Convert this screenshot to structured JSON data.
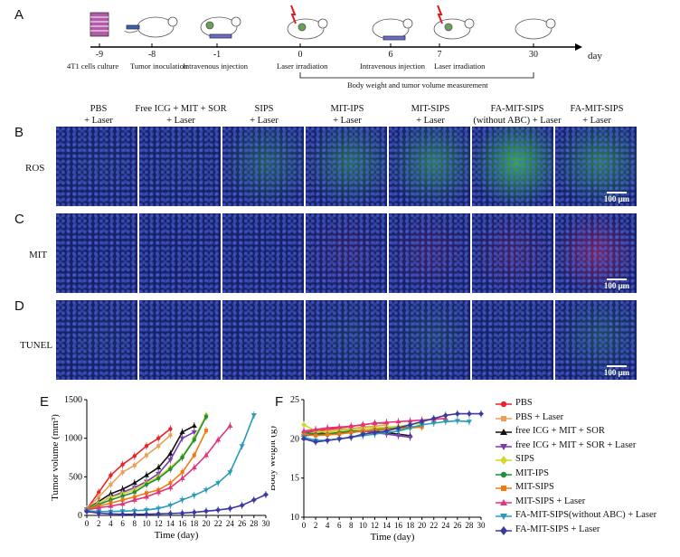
{
  "panels": {
    "A": "A",
    "B": "B",
    "C": "C",
    "D": "D",
    "E": "E",
    "F": "F"
  },
  "timeline": {
    "unit": "day",
    "points": [
      {
        "day": "-9",
        "desc": "4T1 cells culture"
      },
      {
        "day": "-8",
        "desc": "Tumor inoculation"
      },
      {
        "day": "-1",
        "desc": "Intravenous injection"
      },
      {
        "day": "0",
        "desc": "Laser irradiation"
      },
      {
        "day": "6",
        "desc": "Intravenous injection"
      },
      {
        "day": "7",
        "desc": "Laser irradiation"
      },
      {
        "day": "30",
        "desc": ""
      }
    ],
    "bracket_label": "Body weight and tumor volume measurement"
  },
  "groups": [
    "PBS\n+ Laser",
    "Free ICG + MIT + SOR\n+ Laser",
    "SIPS\n+ Laser",
    "MIT-IPS\n+ Laser",
    "MIT-SIPS\n+ Laser",
    "FA-MIT-SIPS\n(without ABC) + Laser",
    "FA-MIT-SIPS\n+ Laser"
  ],
  "rows": [
    "ROS",
    "MIT",
    "TUNEL"
  ],
  "scale_bar": "100 μm",
  "colors": {
    "PBS": "#e8242a",
    "PBS + Laser": "#e8a15a",
    "free ICG + MIT + SOR": "#111111",
    "free ICG + MIT + SOR + Laser": "#7a3ab0",
    "SIPS": "#d6d62a",
    "MIT-IPS": "#1f8f3a",
    "MIT-SIPS": "#f07a10",
    "MIT-SIPS + Laser": "#e0357a",
    "FA-MIT-SIPS(without ABC) + Laser": "#2a9ab8",
    "FA-MIT-SIPS + Laser": "#3a3aa0"
  },
  "chart_data": [
    {
      "type": "line",
      "panel": "E",
      "xlabel": "Time (day)",
      "ylabel": "Tumor volume (mm³)",
      "xlim": [
        0,
        30
      ],
      "ylim": [
        0,
        1500
      ],
      "xticks": [
        0,
        2,
        4,
        6,
        8,
        10,
        12,
        14,
        16,
        18,
        20,
        22,
        24,
        26,
        28,
        30
      ],
      "yticks": [
        0,
        500,
        1000,
        1500
      ],
      "series": [
        {
          "name": "PBS",
          "x": [
            0,
            2,
            4,
            6,
            8,
            10,
            12,
            14
          ],
          "y": [
            80,
            300,
            520,
            660,
            770,
            900,
            1000,
            1120
          ]
        },
        {
          "name": "PBS + Laser",
          "x": [
            0,
            2,
            4,
            6,
            8,
            10,
            12,
            14
          ],
          "y": [
            80,
            240,
            400,
            560,
            650,
            780,
            900,
            1040
          ]
        },
        {
          "name": "free ICG + MIT + SOR",
          "x": [
            0,
            2,
            4,
            6,
            8,
            10,
            12,
            14,
            16,
            18
          ],
          "y": [
            80,
            180,
            280,
            340,
            420,
            520,
            620,
            800,
            1080,
            1160
          ]
        },
        {
          "name": "free ICG + MIT + SOR + Laser",
          "x": [
            0,
            2,
            4,
            6,
            8,
            10,
            12,
            14,
            16,
            18
          ],
          "y": [
            80,
            150,
            240,
            300,
            360,
            440,
            540,
            720,
            1000,
            1080
          ]
        },
        {
          "name": "SIPS",
          "x": [
            0,
            2,
            4,
            6,
            8,
            10,
            12,
            14,
            16,
            18,
            20
          ],
          "y": [
            80,
            160,
            230,
            280,
            330,
            420,
            500,
            620,
            760,
            1000,
            1300
          ]
        },
        {
          "name": "MIT-IPS",
          "x": [
            0,
            2,
            4,
            6,
            8,
            10,
            12,
            14,
            16,
            18,
            20
          ],
          "y": [
            80,
            140,
            200,
            250,
            300,
            400,
            480,
            600,
            750,
            980,
            1280
          ]
        },
        {
          "name": "MIT-SIPS",
          "x": [
            0,
            2,
            4,
            6,
            8,
            10,
            12,
            14,
            16,
            18,
            20
          ],
          "y": [
            80,
            120,
            160,
            200,
            240,
            290,
            330,
            420,
            560,
            780,
            1100
          ]
        },
        {
          "name": "MIT-SIPS + Laser",
          "x": [
            0,
            2,
            4,
            6,
            8,
            10,
            12,
            14,
            16,
            18,
            20,
            22,
            24
          ],
          "y": [
            70,
            100,
            120,
            150,
            200,
            240,
            300,
            360,
            480,
            620,
            780,
            980,
            1160
          ]
        },
        {
          "name": "FA-MIT-SIPS(without ABC) + Laser",
          "x": [
            0,
            2,
            4,
            6,
            8,
            10,
            12,
            14,
            16,
            18,
            20,
            22,
            24,
            26,
            28
          ],
          "y": [
            60,
            50,
            50,
            55,
            60,
            70,
            90,
            130,
            200,
            260,
            330,
            420,
            560,
            900,
            1300
          ]
        },
        {
          "name": "FA-MIT-SIPS + Laser",
          "x": [
            0,
            2,
            4,
            6,
            8,
            10,
            12,
            14,
            16,
            18,
            20,
            22,
            24,
            26,
            28,
            30
          ],
          "y": [
            50,
            30,
            20,
            15,
            15,
            15,
            20,
            25,
            30,
            40,
            55,
            70,
            90,
            130,
            200,
            270
          ]
        }
      ]
    },
    {
      "type": "line",
      "panel": "F",
      "xlabel": "Time (day)",
      "ylabel": "Body weight (g)",
      "xlim": [
        0,
        30
      ],
      "ylim": [
        10,
        25
      ],
      "xticks": [
        0,
        2,
        4,
        6,
        8,
        10,
        12,
        14,
        16,
        18,
        20,
        22,
        24,
        26,
        28,
        30
      ],
      "yticks": [
        10,
        15,
        20,
        25
      ],
      "series": [
        {
          "name": "PBS",
          "x": [
            0,
            2,
            4,
            6,
            8,
            10,
            12,
            14
          ],
          "y": [
            20.8,
            21.0,
            21.2,
            21.4,
            21.6,
            21.8,
            22.0,
            22.0
          ]
        },
        {
          "name": "PBS + Laser",
          "x": [
            0,
            2,
            4,
            6,
            8,
            10,
            12,
            14
          ],
          "y": [
            20.6,
            20.8,
            21.0,
            21.2,
            21.3,
            21.5,
            21.6,
            21.8
          ]
        },
        {
          "name": "free ICG + MIT + SOR",
          "x": [
            0,
            2,
            4,
            6,
            8,
            10,
            12,
            14,
            16,
            18
          ],
          "y": [
            20.5,
            20.6,
            20.8,
            20.8,
            21.0,
            21.0,
            21.0,
            20.8,
            20.6,
            20.4
          ]
        },
        {
          "name": "free ICG + MIT + SOR + Laser",
          "x": [
            0,
            2,
            4,
            6,
            8,
            10,
            12,
            14,
            16,
            18
          ],
          "y": [
            20.4,
            20.5,
            20.6,
            20.8,
            20.8,
            21.0,
            20.8,
            20.6,
            20.4,
            20.2
          ]
        },
        {
          "name": "SIPS",
          "x": [
            0,
            2,
            4,
            6,
            8,
            10,
            12,
            14,
            16,
            18,
            20
          ],
          "y": [
            21.8,
            21.0,
            20.8,
            21.0,
            21.2,
            21.3,
            21.4,
            21.5,
            21.6,
            21.8,
            22.0
          ]
        },
        {
          "name": "MIT-IPS",
          "x": [
            0,
            2,
            4,
            6,
            8,
            10,
            12,
            14,
            16,
            18,
            20
          ],
          "y": [
            20.8,
            20.6,
            20.6,
            20.8,
            21.0,
            21.0,
            21.2,
            21.3,
            21.4,
            21.5,
            21.6
          ]
        },
        {
          "name": "MIT-SIPS",
          "x": [
            0,
            2,
            4,
            6,
            8,
            10,
            12,
            14,
            16,
            18,
            20
          ],
          "y": [
            20.6,
            20.4,
            20.5,
            20.6,
            20.8,
            21.0,
            21.1,
            21.2,
            21.3,
            21.4,
            21.5
          ]
        },
        {
          "name": "MIT-SIPS + Laser",
          "x": [
            0,
            2,
            4,
            6,
            8,
            10,
            12,
            14,
            16,
            18,
            20,
            22,
            24
          ],
          "y": [
            21.0,
            21.2,
            21.4,
            21.5,
            21.6,
            21.8,
            22.0,
            22.1,
            22.2,
            22.3,
            22.4,
            22.5,
            22.6
          ]
        },
        {
          "name": "FA-MIT-SIPS(without ABC) + Laser",
          "x": [
            0,
            2,
            4,
            6,
            8,
            10,
            12,
            14,
            16,
            18,
            20,
            22,
            24,
            26,
            28
          ],
          "y": [
            20.2,
            19.8,
            19.8,
            20.0,
            20.2,
            20.4,
            20.6,
            20.8,
            21.0,
            21.4,
            21.8,
            22.0,
            22.2,
            22.3,
            22.2
          ]
        },
        {
          "name": "FA-MIT-SIPS + Laser",
          "x": [
            0,
            2,
            4,
            6,
            8,
            10,
            12,
            14,
            16,
            18,
            20,
            22,
            24,
            26,
            28,
            30
          ],
          "y": [
            20.0,
            19.6,
            19.8,
            20.0,
            20.2,
            20.6,
            20.8,
            21.0,
            21.4,
            21.8,
            22.2,
            22.6,
            23.0,
            23.2,
            23.2,
            23.2
          ]
        }
      ]
    }
  ]
}
